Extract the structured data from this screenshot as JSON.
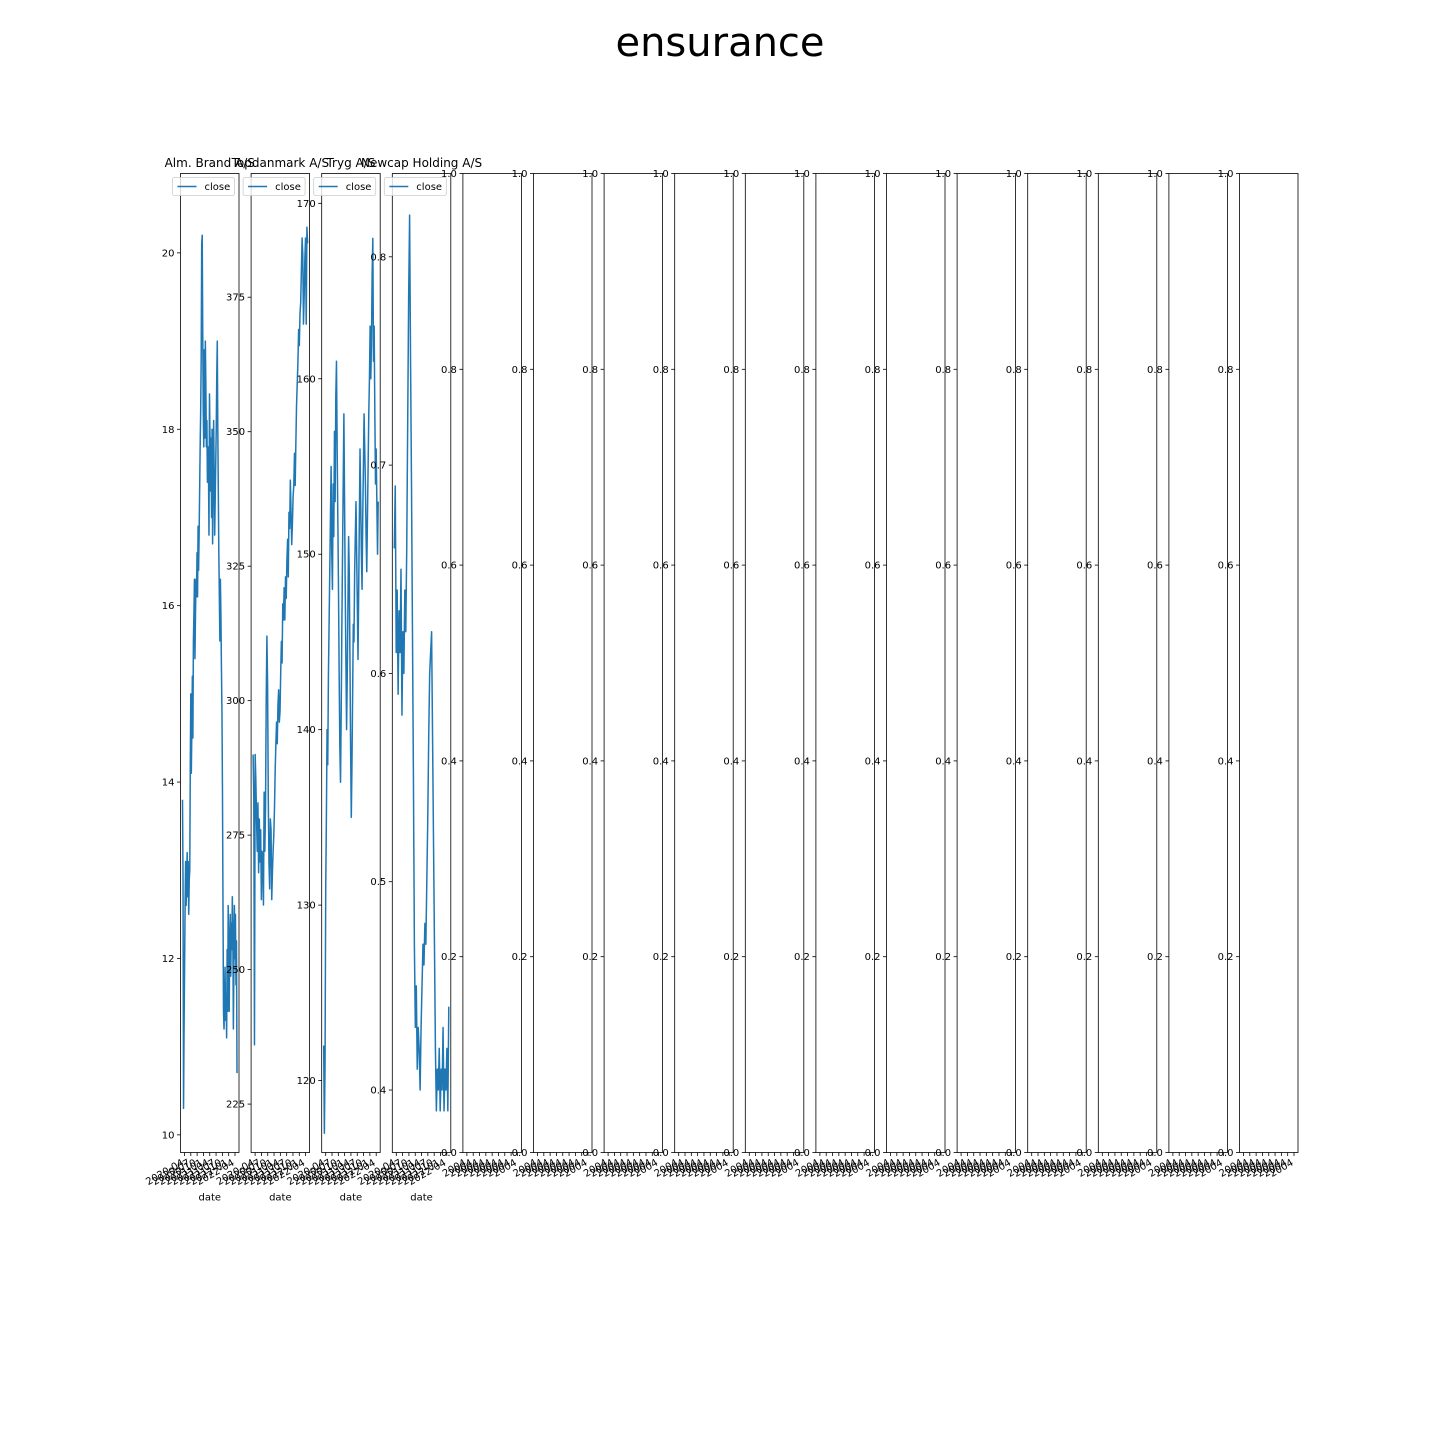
{
  "figure": {
    "title": "ensurance"
  },
  "colors": {
    "line": "#1f77b4",
    "axis": "#000000",
    "background": "#ffffff"
  },
  "chart_data": [
    {
      "type": "line",
      "title": "Alm. Brand A/S",
      "xlabel": "date",
      "ylabel": "",
      "legend": [
        "close"
      ],
      "legend_loc": "upper left",
      "ylim": [
        9.8,
        20.9
      ],
      "yticks": [
        10,
        12,
        14,
        16,
        18,
        20
      ],
      "x_start": "2020-04",
      "xticks": [
        "2020-04",
        "2020-07",
        "2020-10",
        "2021-01",
        "2021-04",
        "2021-07",
        "2021-10",
        "2022-01",
        "2022-04"
      ],
      "series": [
        {
          "name": "close",
          "values": [
            13.8,
            12.9,
            10.3,
            11.2,
            11.9,
            12.6,
            13.1,
            12.6,
            12.9,
            13.2,
            12.7,
            13.1,
            12.5,
            12.9,
            13.0,
            14.2,
            15.0,
            14.1,
            14.6,
            15.2,
            14.5,
            15.6,
            15.9,
            16.3,
            15.4,
            15.9,
            16.3,
            16.1,
            16.6,
            16.1,
            16.9,
            16.4,
            16.8,
            17.3,
            17.8,
            18.2,
            18.8,
            20.1,
            20.2,
            19.1,
            18.2,
            17.8,
            18.9,
            17.9,
            19.0,
            18.5,
            17.8,
            18.1,
            17.4,
            17.8,
            17.6,
            16.8,
            18.4,
            17.9,
            17.3,
            17.9,
            17.0,
            18.0,
            16.7,
            17.4,
            18.1,
            17.5,
            16.8,
            17.2,
            17.6,
            18.0,
            18.6,
            19.0,
            18.0,
            17.3,
            16.6,
            16.1,
            15.6,
            16.3,
            15.9,
            15.3,
            14.8,
            13.9,
            12.6,
            11.4,
            11.2,
            11.5,
            11.9,
            11.3,
            11.6,
            11.1,
            12.1,
            11.4,
            12.6,
            12.0,
            11.4,
            12.2,
            12.5,
            11.8,
            12.4,
            12.1,
            12.7,
            12.3,
            11.2,
            11.9,
            12.6,
            12.0,
            12.5,
            11.7,
            12.2,
            10.7
          ]
        }
      ]
    },
    {
      "type": "line",
      "title": "Topdanmark A/S",
      "xlabel": "date",
      "ylabel": "",
      "legend": [
        "close"
      ],
      "legend_loc": "upper left",
      "ylim": [
        216,
        398
      ],
      "yticks": [
        225,
        250,
        275,
        300,
        325,
        350,
        375
      ],
      "x_start": "2020-04",
      "xticks": [
        "2020-04",
        "2020-07",
        "2020-10",
        "2021-01",
        "2021-04",
        "2021-07",
        "2021-10",
        "2022-01",
        "2022-04"
      ],
      "series": [
        {
          "name": "close",
          "values": [
            290,
            282,
            236,
            290,
            285,
            278,
            272,
            281,
            268,
            278,
            270,
            276,
            263,
            272,
            271,
            262,
            283,
            272,
            280,
            300,
            312,
            303,
            282,
            270,
            265,
            278,
            276,
            263,
            268,
            272,
            275,
            280,
            287,
            292,
            296,
            292,
            299,
            302,
            296,
            298,
            305,
            311,
            307,
            318,
            315,
            321,
            315,
            323,
            319,
            326,
            330,
            323,
            335,
            332,
            341,
            335,
            329,
            333,
            338,
            340,
            346,
            340,
            348,
            355,
            359,
            363,
            369,
            366,
            372,
            374,
            380,
            386,
            383,
            370,
            375,
            382,
            386,
            370,
            388,
            385
          ]
        }
      ]
    },
    {
      "type": "line",
      "title": "Tryg A/S",
      "xlabel": "date",
      "ylabel": "",
      "legend": [
        "close"
      ],
      "legend_loc": "upper left",
      "ylim": [
        115.9,
        171.7
      ],
      "yticks": [
        120,
        130,
        140,
        150,
        160,
        170
      ],
      "x_start": "2020-04",
      "xticks": [
        "2020-04",
        "2020-07",
        "2020-10",
        "2021-01",
        "2021-04",
        "2021-07",
        "2021-10",
        "2022-01",
        "2022-04"
      ],
      "series": [
        {
          "name": "close",
          "values": [
            122,
            117,
            121,
            131,
            135,
            140,
            138,
            143,
            146,
            149,
            152,
            155,
            150,
            148,
            154,
            151,
            157,
            153,
            159,
            161,
            156,
            152,
            148,
            143,
            139,
            137,
            141,
            146,
            150,
            154,
            158,
            153,
            148,
            144,
            140,
            143,
            147,
            151,
            149,
            144,
            139,
            135,
            138,
            142,
            146,
            145,
            149,
            151,
            153,
            150,
            147,
            144,
            148,
            152,
            156,
            153,
            150,
            148,
            152,
            155,
            158,
            156,
            154,
            151,
            149,
            152,
            155,
            158,
            160,
            163,
            160,
            162,
            166,
            168,
            161,
            163,
            158,
            154,
            156,
            153,
            150,
            153
          ]
        }
      ]
    },
    {
      "type": "line",
      "title": "Newcap Holding A/S",
      "xlabel": "date",
      "ylabel": "",
      "legend": [
        "close"
      ],
      "legend_loc": "upper left",
      "ylim": [
        0.37,
        0.84
      ],
      "yticks": [
        0.4,
        0.5,
        0.6,
        0.7,
        0.8
      ],
      "x_start": "2020-04",
      "xticks": [
        "2020-04",
        "2020-07",
        "2020-10",
        "2021-01",
        "2021-04",
        "2021-07",
        "2021-10",
        "2022-01",
        "2022-04"
      ],
      "series": [
        {
          "name": "close",
          "values": [
            0.66,
            0.69,
            0.61,
            0.64,
            0.59,
            0.63,
            0.61,
            0.65,
            0.58,
            0.62,
            0.6,
            0.64,
            0.62,
            0.66,
            0.72,
            0.78,
            0.82,
            0.75,
            0.69,
            0.62,
            0.55,
            0.47,
            0.43,
            0.45,
            0.41,
            0.43,
            0.42,
            0.4,
            0.43,
            0.45,
            0.47,
            0.46,
            0.48,
            0.47,
            0.5,
            0.53,
            0.57,
            0.6,
            0.61,
            0.62,
            0.57,
            0.52,
            0.47,
            0.42,
            0.39,
            0.41,
            0.4,
            0.42,
            0.39,
            0.41,
            0.4,
            0.43,
            0.39,
            0.41,
            0.4,
            0.42,
            0.39,
            0.44
          ]
        }
      ]
    },
    {
      "type": "line",
      "title": "",
      "xlabel": "",
      "legend": [],
      "ylim": [
        0,
        1
      ],
      "yticks": [
        0.0,
        0.2,
        0.4,
        0.6,
        0.8,
        1.0
      ],
      "xticks": [
        "2004",
        "2004",
        "2004",
        "2004",
        "2004",
        "2004",
        "2004",
        "2004",
        "2004"
      ],
      "series": []
    },
    {
      "type": "line",
      "title": "",
      "xlabel": "",
      "legend": [],
      "ylim": [
        0,
        1
      ],
      "yticks": [
        0.0,
        0.2,
        0.4,
        0.6,
        0.8,
        1.0
      ],
      "xticks": [
        "2004",
        "2004",
        "2004",
        "2004",
        "2004",
        "2004",
        "2004",
        "2004",
        "2004"
      ],
      "series": []
    },
    {
      "type": "line",
      "title": "",
      "xlabel": "",
      "legend": [],
      "ylim": [
        0,
        1
      ],
      "yticks": [
        0.0,
        0.2,
        0.4,
        0.6,
        0.8,
        1.0
      ],
      "xticks": [
        "2004",
        "2004",
        "2004",
        "2004",
        "2004",
        "2004",
        "2004",
        "2004",
        "2004"
      ],
      "series": []
    },
    {
      "type": "line",
      "title": "",
      "xlabel": "",
      "legend": [],
      "ylim": [
        0,
        1
      ],
      "yticks": [
        0.0,
        0.2,
        0.4,
        0.6,
        0.8,
        1.0
      ],
      "xticks": [
        "2004",
        "2004",
        "2004",
        "2004",
        "2004",
        "2004",
        "2004",
        "2004",
        "2004"
      ],
      "series": []
    },
    {
      "type": "line",
      "title": "",
      "xlabel": "",
      "legend": [],
      "ylim": [
        0,
        1
      ],
      "yticks": [
        0.0,
        0.2,
        0.4,
        0.6,
        0.8,
        1.0
      ],
      "xticks": [
        "2004",
        "2004",
        "2004",
        "2004",
        "2004",
        "2004",
        "2004",
        "2004",
        "2004"
      ],
      "series": []
    },
    {
      "type": "line",
      "title": "",
      "xlabel": "",
      "legend": [],
      "ylim": [
        0,
        1
      ],
      "yticks": [
        0.0,
        0.2,
        0.4,
        0.6,
        0.8,
        1.0
      ],
      "xticks": [
        "2004",
        "2004",
        "2004",
        "2004",
        "2004",
        "2004",
        "2004",
        "2004",
        "2004"
      ],
      "series": []
    },
    {
      "type": "line",
      "title": "",
      "xlabel": "",
      "legend": [],
      "ylim": [
        0,
        1
      ],
      "yticks": [
        0.0,
        0.2,
        0.4,
        0.6,
        0.8,
        1.0
      ],
      "xticks": [
        "2004",
        "2004",
        "2004",
        "2004",
        "2004",
        "2004",
        "2004",
        "2004",
        "2004"
      ],
      "series": []
    },
    {
      "type": "line",
      "title": "",
      "xlabel": "",
      "legend": [],
      "ylim": [
        0,
        1
      ],
      "yticks": [
        0.0,
        0.2,
        0.4,
        0.6,
        0.8,
        1.0
      ],
      "xticks": [
        "2004",
        "2004",
        "2004",
        "2004",
        "2004",
        "2004",
        "2004",
        "2004",
        "2004"
      ],
      "series": []
    },
    {
      "type": "line",
      "title": "",
      "xlabel": "",
      "legend": [],
      "ylim": [
        0,
        1
      ],
      "yticks": [
        0.0,
        0.2,
        0.4,
        0.6,
        0.8,
        1.0
      ],
      "xticks": [
        "2004",
        "2004",
        "2004",
        "2004",
        "2004",
        "2004",
        "2004",
        "2004",
        "2004"
      ],
      "series": []
    },
    {
      "type": "line",
      "title": "",
      "xlabel": "",
      "legend": [],
      "ylim": [
        0,
        1
      ],
      "yticks": [
        0.0,
        0.2,
        0.4,
        0.6,
        0.8,
        1.0
      ],
      "xticks": [
        "2004",
        "2004",
        "2004",
        "2004",
        "2004",
        "2004",
        "2004",
        "2004",
        "2004"
      ],
      "series": []
    },
    {
      "type": "line",
      "title": "",
      "xlabel": "",
      "legend": [],
      "ylim": [
        0,
        1
      ],
      "yticks": [
        0.0,
        0.2,
        0.4,
        0.6,
        0.8,
        1.0
      ],
      "xticks": [
        "2004",
        "2004",
        "2004",
        "2004",
        "2004",
        "2004",
        "2004",
        "2004",
        "2004"
      ],
      "series": []
    },
    {
      "type": "line",
      "title": "",
      "xlabel": "",
      "legend": [],
      "ylim": [
        0,
        1
      ],
      "yticks": [
        0.0,
        0.2,
        0.4,
        0.6,
        0.8,
        1.0
      ],
      "xticks": [
        "2004",
        "2004",
        "2004",
        "2004",
        "2004",
        "2004",
        "2004",
        "2004",
        "2004"
      ],
      "series": []
    }
  ]
}
